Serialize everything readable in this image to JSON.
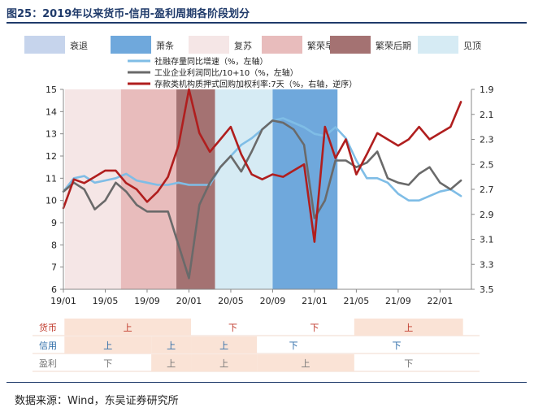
{
  "title": "图25：2019年以来货币-信用-盈利周期各阶段划分",
  "source": "数据来源：Wind，东吴证券研究所",
  "colors": {
    "phase_recession": "#c6d4ec",
    "phase_depression": "#6fa8dc",
    "phase_recovery": "#f5e6e6",
    "phase_boom_early": "#e8bcbc",
    "phase_boom_late": "#a47272",
    "phase_peak": "#d6ebf4",
    "series_social": "#7fbde6",
    "series_industrial": "#6a6a6a",
    "series_repo": "#b01e1e",
    "table_fill": "#fae3d6",
    "label_money": "#c0392b",
    "label_credit": "#2e6ca8",
    "label_profit": "#777777"
  },
  "chart_data": {
    "type": "line",
    "phase_legend": [
      "衰退",
      "萧条",
      "复苏",
      "繁荣早期",
      "繁荣后期",
      "见顶"
    ],
    "phases": [
      {
        "name": "复苏",
        "start": 0.15,
        "end": 5.5
      },
      {
        "name": "繁荣早期",
        "start": 5.5,
        "end": 10.8
      },
      {
        "name": "繁荣后期",
        "start": 10.8,
        "end": 14.5
      },
      {
        "name": "见顶",
        "start": 14.5,
        "end": 20.0
      },
      {
        "name": "萧条",
        "start": 20.0,
        "end": 26.2
      }
    ],
    "x_ticks": [
      "19/01",
      "19/05",
      "19/09",
      "20/01",
      "20/05",
      "20/09",
      "21/01",
      "21/05",
      "21/09",
      "22/01"
    ],
    "x_tick_pos": [
      0,
      4,
      8,
      12,
      16,
      20,
      24,
      28,
      32,
      36
    ],
    "x_range": [
      0,
      39
    ],
    "ylim_left": [
      6,
      15
    ],
    "y_ticks_left": [
      "6",
      "7",
      "8",
      "9",
      "10",
      "11",
      "12",
      "13",
      "14",
      "15"
    ],
    "ylim_right_inverted": [
      1.9,
      3.5
    ],
    "y_ticks_right": [
      "1.9",
      "2.1",
      "2.3",
      "2.5",
      "2.7",
      "2.9",
      "3.1",
      "3.3",
      "3.5"
    ],
    "series": [
      {
        "name": "社融存量同比增速（%，左轴）",
        "axis": "left",
        "x": [
          0,
          1,
          2,
          3,
          4,
          5,
          6,
          7,
          8,
          9,
          10,
          11,
          12,
          13,
          14,
          15,
          16,
          17,
          18,
          19,
          20,
          21,
          22,
          23,
          24,
          25,
          26,
          27,
          28,
          29,
          30,
          31,
          32,
          33,
          34,
          35,
          36,
          37,
          38
        ],
        "values": [
          10.4,
          11.0,
          11.1,
          10.8,
          10.9,
          11.0,
          11.2,
          10.9,
          10.8,
          10.7,
          10.7,
          10.8,
          10.7,
          10.7,
          10.7,
          11.5,
          12.0,
          12.5,
          12.8,
          13.2,
          13.6,
          13.7,
          13.5,
          13.3,
          13.0,
          12.9,
          13.3,
          12.8,
          11.8,
          11.0,
          11.0,
          10.8,
          10.3,
          10.0,
          10.0,
          10.2,
          10.4,
          10.5,
          10.2
        ]
      },
      {
        "name": "工业企业利润同比/10+10（%，左轴）",
        "axis": "left",
        "x": [
          0,
          1,
          2,
          3,
          4,
          5,
          6,
          7,
          8,
          9,
          10,
          11,
          12,
          13,
          14,
          15,
          16,
          17,
          18,
          19,
          20,
          21,
          22,
          23,
          24,
          25,
          26,
          27,
          28,
          29,
          30,
          31,
          32,
          33,
          34,
          35,
          36,
          37,
          38
        ],
        "values": [
          10.4,
          10.8,
          10.5,
          9.6,
          10.0,
          10.8,
          10.4,
          9.8,
          9.5,
          9.5,
          9.5,
          8.0,
          6.5,
          9.8,
          10.8,
          11.5,
          12.0,
          11.3,
          12.2,
          13.2,
          13.6,
          13.5,
          13.2,
          12.5,
          9.2,
          10.0,
          11.8,
          11.8,
          11.5,
          11.7,
          12.2,
          11.0,
          10.8,
          10.7,
          11.2,
          11.5,
          10.8,
          10.5,
          10.9
        ]
      },
      {
        "name": "存款类机构质押式回购加权利率:7天（%，右轴，逆序）",
        "axis": "right",
        "x": [
          0,
          1,
          2,
          3,
          4,
          5,
          6,
          7,
          8,
          9,
          10,
          11,
          12,
          13,
          14,
          15,
          16,
          17,
          18,
          19,
          20,
          21,
          22,
          23,
          24,
          25,
          26,
          27,
          28,
          29,
          30,
          31,
          32,
          33,
          34,
          35,
          36,
          37,
          38
        ],
        "values": [
          2.85,
          2.62,
          2.65,
          2.6,
          2.55,
          2.55,
          2.65,
          2.7,
          2.8,
          2.72,
          2.6,
          2.35,
          1.9,
          2.25,
          2.4,
          2.3,
          2.2,
          2.42,
          2.58,
          2.62,
          2.58,
          2.6,
          2.55,
          2.5,
          3.12,
          2.2,
          2.45,
          2.3,
          2.58,
          2.42,
          2.25,
          2.3,
          2.35,
          2.3,
          2.2,
          2.3,
          2.25,
          2.2,
          2.0
        ]
      }
    ]
  },
  "table": {
    "rows": [
      {
        "label": "货币",
        "cells": [
          {
            "text": "上",
            "x0": 0.1,
            "x1": 12.2,
            "fill": true
          },
          {
            "text": "下",
            "x0": 12.2,
            "x1": 20.2,
            "fill": false
          },
          {
            "text": "下",
            "x0": 20.2,
            "x1": 27.8,
            "fill": false
          },
          {
            "text": "上",
            "x0": 27.8,
            "x1": 38.2,
            "fill": true
          }
        ]
      },
      {
        "label": "信用",
        "cells": [
          {
            "text": "上",
            "x0": 0.1,
            "x1": 8.4,
            "fill": true
          },
          {
            "text": "上",
            "x0": 8.4,
            "x1": 12.2,
            "fill": true
          },
          {
            "text": "上",
            "x0": 12.2,
            "x1": 18.5,
            "fill": true
          },
          {
            "text": "下",
            "x0": 18.5,
            "x1": 25.5,
            "fill": false
          },
          {
            "text": "下",
            "x0": 25.5,
            "x1": 38.2,
            "fill": false
          }
        ]
      },
      {
        "label": "盈利",
        "cells": [
          {
            "text": "下",
            "x0": 0.1,
            "x1": 8.4,
            "fill": false
          },
          {
            "text": "上",
            "x0": 8.4,
            "x1": 12.2,
            "fill": true
          },
          {
            "text": "上",
            "x0": 12.2,
            "x1": 18.5,
            "fill": true
          },
          {
            "text": "上",
            "x0": 18.5,
            "x1": 27.8,
            "fill": true
          },
          {
            "text": "下",
            "x0": 27.8,
            "x1": 38.2,
            "fill": false
          }
        ]
      }
    ]
  }
}
